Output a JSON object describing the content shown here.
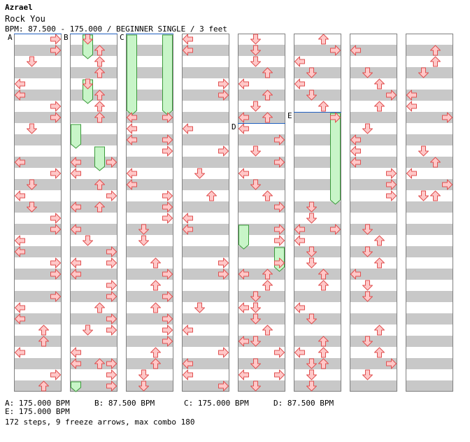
{
  "header": {
    "title": "Azrael",
    "subtitle": "Rock You",
    "meta": "BPM: 87.500 - 175.000 / BEGINNER SINGLE / 3 feet"
  },
  "markers": [
    {
      "label": "A",
      "column": 0,
      "pos": 0
    },
    {
      "label": "B",
      "column": 1,
      "pos": 0
    },
    {
      "label": "C",
      "column": 2,
      "pos": 0
    },
    {
      "label": "D",
      "column": 4,
      "pos": 8
    },
    {
      "label": "E",
      "column": 5,
      "pos": 7
    }
  ],
  "bpm_changes": [
    {
      "label": "A",
      "text": "A: 175.000 BPM"
    },
    {
      "label": "B",
      "text": "B: 87.500 BPM"
    },
    {
      "label": "C",
      "text": "C: 175.000 BPM"
    },
    {
      "label": "D",
      "text": "D: 87.500 BPM"
    },
    {
      "label": "E",
      "text": "E: 175.000 BPM"
    }
  ],
  "summary": "172 steps, 9 freeze arrows, max combo 180",
  "colors": {
    "arrow_fill": "#ffc8c8",
    "arrow_stroke": "#e05050",
    "freeze_fill": "#c8f5c8",
    "freeze_stroke": "#3a9a3a",
    "stripe": "#c8c8c8",
    "marker_line": "#2060c0"
  },
  "chart": {
    "columns": 8,
    "rows_per_column": 32,
    "notes": [
      [
        [
          3,
          0
        ],
        [
          3,
          1
        ],
        [
          1,
          2
        ],
        [
          0,
          4
        ],
        [
          0,
          5
        ],
        [
          3,
          6
        ],
        [
          3,
          7
        ],
        [
          1,
          8
        ],
        [
          0,
          11
        ],
        [
          3,
          12
        ],
        [
          1,
          13
        ],
        [
          0,
          14
        ],
        [
          1,
          15
        ],
        [
          3,
          16
        ],
        [
          3,
          17
        ],
        [
          0,
          18
        ],
        [
          0,
          19
        ],
        [
          3,
          20
        ],
        [
          3,
          21
        ],
        [
          3,
          23
        ],
        [
          0,
          24
        ],
        [
          0,
          25
        ],
        [
          2,
          26
        ],
        [
          2,
          27
        ],
        [
          0,
          28
        ],
        [
          3,
          30
        ],
        [
          2,
          31
        ]
      ],
      [
        [
          1,
          0
        ],
        [
          2,
          1
        ],
        [
          2,
          2
        ],
        [
          2,
          3
        ],
        [
          1,
          4
        ],
        [
          2,
          5
        ],
        [
          2,
          6
        ],
        [
          2,
          7
        ],
        [
          0,
          11
        ],
        [
          3,
          11
        ],
        [
          0,
          12
        ],
        [
          2,
          13
        ],
        [
          3,
          14
        ],
        [
          0,
          15
        ],
        [
          2,
          15
        ],
        [
          0,
          17
        ],
        [
          1,
          18
        ],
        [
          3,
          19
        ],
        [
          0,
          20
        ],
        [
          3,
          20
        ],
        [
          0,
          21
        ],
        [
          3,
          22
        ],
        [
          3,
          23
        ],
        [
          2,
          24
        ],
        [
          3,
          25
        ],
        [
          1,
          26
        ],
        [
          3,
          26
        ],
        [
          0,
          28
        ],
        [
          0,
          29
        ],
        [
          2,
          29
        ],
        [
          3,
          29
        ],
        [
          3,
          30
        ],
        [
          3,
          31
        ]
      ],
      [
        [
          3,
          7
        ],
        [
          0,
          7
        ],
        [
          0,
          8
        ],
        [
          0,
          9
        ],
        [
          3,
          9
        ],
        [
          3,
          10
        ],
        [
          0,
          12
        ],
        [
          0,
          13
        ],
        [
          3,
          14
        ],
        [
          3,
          15
        ],
        [
          3,
          16
        ],
        [
          1,
          17
        ],
        [
          1,
          18
        ],
        [
          2,
          20
        ],
        [
          3,
          21
        ],
        [
          2,
          22
        ],
        [
          3,
          23
        ],
        [
          2,
          24
        ],
        [
          3,
          25
        ],
        [
          3,
          26
        ],
        [
          3,
          27
        ],
        [
          2,
          28
        ],
        [
          2,
          29
        ],
        [
          1,
          30
        ],
        [
          1,
          31
        ]
      ],
      [
        [
          0,
          0
        ],
        [
          0,
          1
        ],
        [
          3,
          4
        ],
        [
          3,
          5
        ],
        [
          0,
          8
        ],
        [
          3,
          10
        ],
        [
          1,
          12
        ],
        [
          2,
          14
        ],
        [
          0,
          16
        ],
        [
          0,
          17
        ],
        [
          3,
          20
        ],
        [
          3,
          21
        ],
        [
          1,
          24
        ],
        [
          0,
          26
        ],
        [
          3,
          28
        ],
        [
          0,
          29
        ],
        [
          0,
          30
        ],
        [
          3,
          31
        ]
      ],
      [
        [
          1,
          0
        ],
        [
          1,
          1
        ],
        [
          1,
          2
        ],
        [
          2,
          3
        ],
        [
          0,
          4
        ],
        [
          2,
          5
        ],
        [
          1,
          6
        ],
        [
          0,
          7
        ],
        [
          2,
          7
        ],
        [
          0,
          8
        ],
        [
          3,
          9
        ],
        [
          1,
          10
        ],
        [
          3,
          11
        ],
        [
          0,
          12
        ],
        [
          1,
          13
        ],
        [
          2,
          14
        ],
        [
          3,
          15
        ],
        [
          3,
          17
        ],
        [
          3,
          18
        ],
        [
          3,
          20
        ],
        [
          0,
          21
        ],
        [
          2,
          21
        ],
        [
          2,
          22
        ],
        [
          1,
          23
        ],
        [
          0,
          24
        ],
        [
          1,
          24
        ],
        [
          1,
          25
        ],
        [
          2,
          26
        ],
        [
          0,
          27
        ],
        [
          1,
          27
        ],
        [
          3,
          28
        ],
        [
          1,
          29
        ],
        [
          0,
          30
        ],
        [
          3,
          30
        ],
        [
          1,
          31
        ]
      ],
      [
        [
          2,
          0
        ],
        [
          3,
          1
        ],
        [
          0,
          2
        ],
        [
          1,
          3
        ],
        [
          0,
          4
        ],
        [
          1,
          5
        ],
        [
          2,
          6
        ],
        [
          3,
          7
        ],
        [
          1,
          15
        ],
        [
          1,
          16
        ],
        [
          0,
          17
        ],
        [
          3,
          17
        ],
        [
          0,
          18
        ],
        [
          1,
          19
        ],
        [
          1,
          20
        ],
        [
          2,
          21
        ],
        [
          2,
          22
        ],
        [
          0,
          24
        ],
        [
          1,
          25
        ],
        [
          2,
          27
        ],
        [
          0,
          28
        ],
        [
          2,
          28
        ],
        [
          1,
          29
        ],
        [
          2,
          29
        ],
        [
          1,
          30
        ],
        [
          1,
          31
        ]
      ],
      [
        [
          0,
          1
        ],
        [
          1,
          3
        ],
        [
          2,
          4
        ],
        [
          3,
          5
        ],
        [
          2,
          6
        ],
        [
          1,
          8
        ],
        [
          0,
          9
        ],
        [
          0,
          10
        ],
        [
          0,
          11
        ],
        [
          3,
          12
        ],
        [
          3,
          13
        ],
        [
          3,
          14
        ],
        [
          1,
          17
        ],
        [
          2,
          18
        ],
        [
          1,
          19
        ],
        [
          2,
          20
        ],
        [
          0,
          21
        ],
        [
          1,
          22
        ],
        [
          1,
          23
        ],
        [
          2,
          26
        ],
        [
          1,
          27
        ],
        [
          2,
          28
        ],
        [
          3,
          29
        ],
        [
          1,
          30
        ]
      ],
      [
        [
          2,
          1
        ],
        [
          2,
          2
        ],
        [
          1,
          3
        ],
        [
          0,
          5
        ],
        [
          0,
          6
        ],
        [
          3,
          7
        ],
        [
          1,
          10
        ],
        [
          2,
          11
        ],
        [
          0,
          12
        ],
        [
          3,
          13
        ],
        [
          1,
          14
        ],
        [
          2,
          14
        ]
      ]
    ],
    "freezes": [
      [],
      [
        [
          1,
          0,
          2
        ],
        [
          1,
          4,
          6
        ],
        [
          0,
          8,
          10
        ],
        [
          2,
          10,
          12
        ],
        [
          0,
          31,
          32
        ]
      ],
      [
        [
          0,
          0,
          7
        ],
        [
          3,
          0,
          7
        ]
      ],
      [],
      [
        [
          0,
          17,
          19
        ],
        [
          3,
          19,
          21
        ]
      ],
      [
        [
          3,
          7,
          15
        ]
      ],
      [],
      []
    ]
  }
}
